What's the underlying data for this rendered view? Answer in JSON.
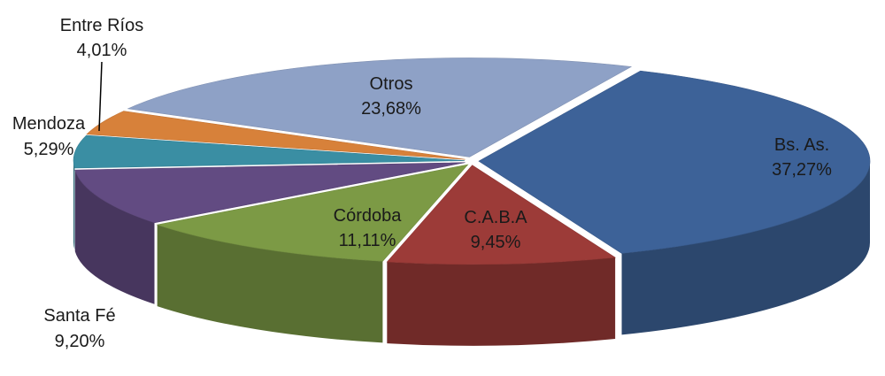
{
  "chart_data": {
    "type": "pie",
    "style": "3d-exploded",
    "slices": [
      {
        "label": "Bs. As.",
        "value_label": "37,27%",
        "value": 37.27,
        "color": "#3d6298"
      },
      {
        "label": "C.A.B.A",
        "value_label": "9,45%",
        "value": 9.45,
        "color": "#9c3b38"
      },
      {
        "label": "Córdoba",
        "value_label": "11,11%",
        "value": 11.11,
        "color": "#7c9a45"
      },
      {
        "label": "Santa Fé",
        "value_label": "9,20%",
        "value": 9.2,
        "color": "#624b82"
      },
      {
        "label": "Mendoza",
        "value_label": "5,29%",
        "value": 5.29,
        "color": "#3a8ea3"
      },
      {
        "label": "Entre Ríos",
        "value_label": "4,01%",
        "value": 4.01,
        "color": "#d7813a"
      },
      {
        "label": "Otros",
        "value_label": "23,68%",
        "value": 23.68,
        "color": "#8ea1c6"
      }
    ],
    "legend": "none"
  }
}
